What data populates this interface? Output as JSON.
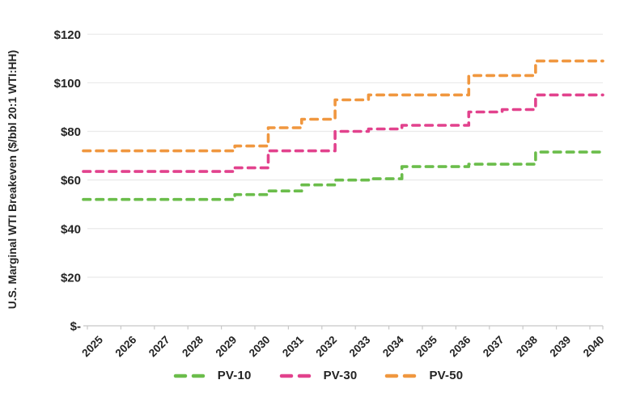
{
  "chart_data": {
    "type": "line",
    "subtype": "stepped-dashed",
    "title": "",
    "xlabel": "",
    "ylabel": "U.S. Marginal WTI Breakeven ($/bbl 20:1 WTI:HH)",
    "categories": [
      "2025",
      "2026",
      "2027",
      "2028",
      "2029",
      "2030",
      "2031",
      "2032",
      "2033",
      "2034",
      "2035",
      "2036",
      "2037",
      "2038",
      "2039",
      "2040"
    ],
    "y_tick_labels": [
      "$-",
      "$20",
      "$40",
      "$60",
      "$80",
      "$100",
      "$120"
    ],
    "ylim": [
      0,
      120
    ],
    "grid": true,
    "legend_position": "bottom",
    "series": [
      {
        "name": "PV-10",
        "color": "#6bbd4b",
        "values": [
          52,
          52,
          52,
          52,
          54,
          55.5,
          58,
          60,
          60.5,
          65.5,
          65.5,
          66.5,
          66.5,
          71.5,
          71.5,
          71.5
        ]
      },
      {
        "name": "PV-30",
        "color": "#e2428d",
        "values": [
          63.5,
          63.5,
          63.5,
          63.5,
          65,
          72,
          72,
          80,
          81,
          82.5,
          82.5,
          88,
          89,
          95,
          95,
          95
        ]
      },
      {
        "name": "PV-50",
        "color": "#f0973f",
        "values": [
          72,
          72,
          72,
          72,
          74,
          81.5,
          85,
          93,
          95,
          95,
          95,
          103,
          103,
          109,
          109,
          109
        ]
      }
    ]
  },
  "colors": {
    "grid": "#eaeaea",
    "axis": "#c8c8c8",
    "text": "#242424"
  }
}
